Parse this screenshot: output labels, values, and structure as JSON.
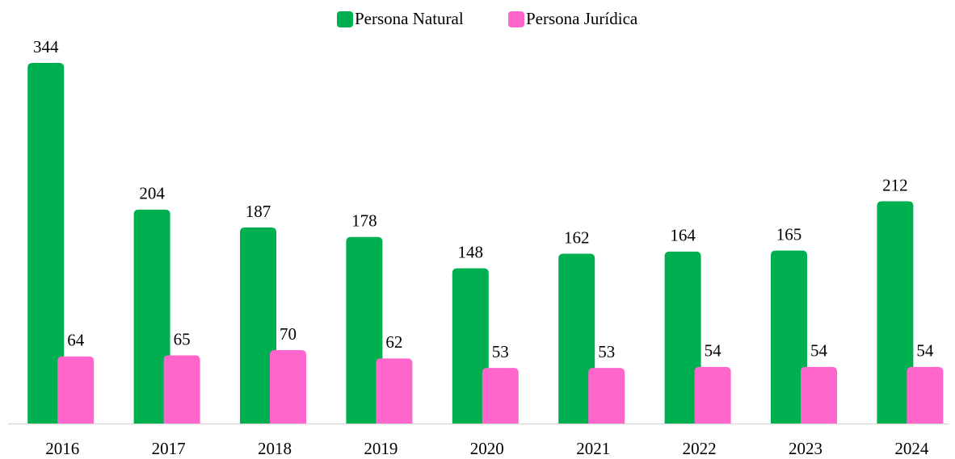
{
  "chart_data": {
    "type": "bar",
    "categories": [
      "2016",
      "2017",
      "2018",
      "2019",
      "2020",
      "2021",
      "2022",
      "2023",
      "2024"
    ],
    "series": [
      {
        "name": "Persona Natural",
        "color": "#00b050",
        "values": [
          344,
          204,
          187,
          178,
          148,
          162,
          164,
          165,
          212
        ]
      },
      {
        "name": "Persona Jurídica",
        "color": "#ff66cc",
        "values": [
          64,
          65,
          70,
          62,
          53,
          53,
          54,
          54,
          54
        ]
      }
    ],
    "ylim": [
      0,
      344
    ],
    "legend": "top"
  }
}
